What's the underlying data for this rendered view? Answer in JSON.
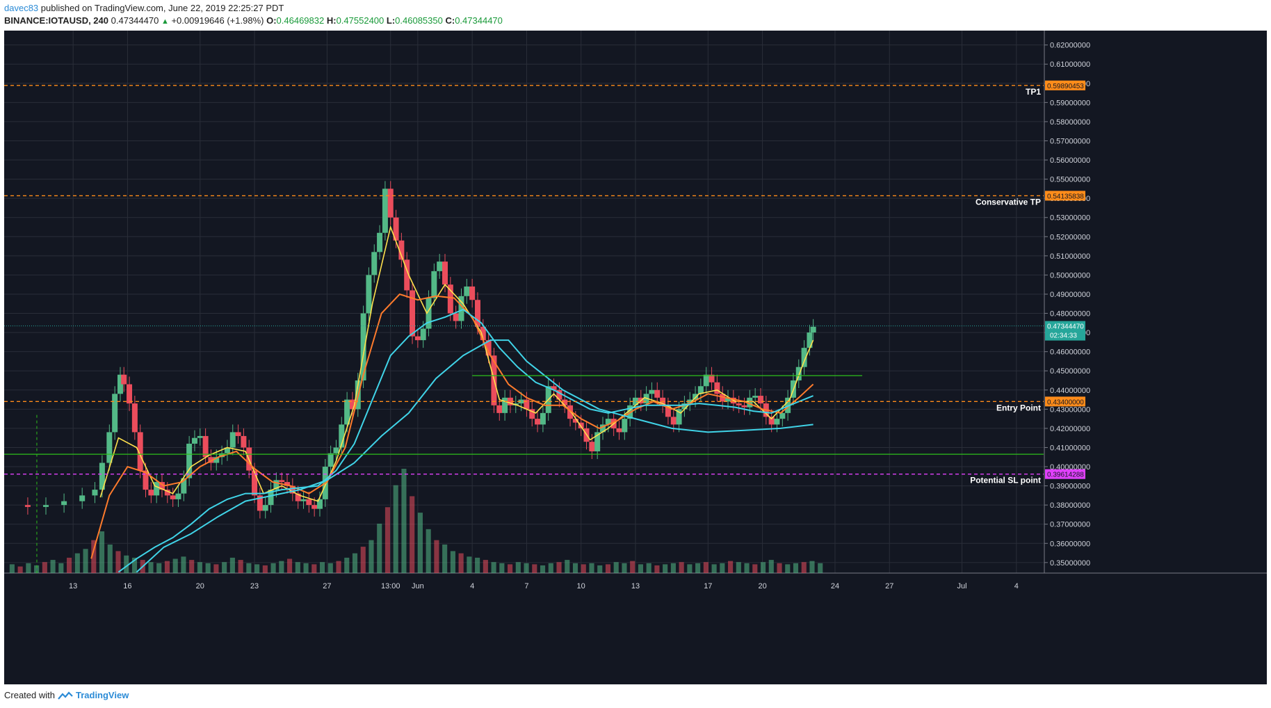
{
  "header": {
    "author": "davec83",
    "published_text": "published on TradingView.com, June 22, 2019 22:25:27 PDT",
    "symbol": "BINANCE:IOTAUSD, 240",
    "last_price": "0.47344470",
    "change": "+0.00919646 (+1.98%)",
    "o_label": "O:",
    "o_value": "0.46469832",
    "h_label": "H:",
    "h_value": "0.47552400",
    "l_label": "L:",
    "l_value": "0.46085350",
    "c_label": "C:",
    "c_value": "0.47344470"
  },
  "footer": {
    "created_with": "Created with",
    "brand": "TradingView"
  },
  "colors": {
    "background": "#131722",
    "grid": "#2a2e39",
    "up": "#53b987",
    "down": "#eb4d5c",
    "ma_fast": "#ffe14d",
    "ma_mid": "#ff7b2c",
    "ma_slow": "#40d4e8",
    "tp_line": "#ff8c1a",
    "sl_line": "#e040fb",
    "support": "#2ec01a"
  },
  "chart_data": {
    "type": "candlestick",
    "symbol": "BINANCE:IOTAUSD",
    "interval": "240",
    "y_ticks": [
      "0.35000000",
      "0.36000000",
      "0.37000000",
      "0.38000000",
      "0.39000000",
      "0.40000000",
      "0.41000000",
      "0.42000000",
      "0.43000000",
      "0.44000000",
      "0.45000000",
      "0.46000000",
      "0.47000000",
      "0.48000000",
      "0.49000000",
      "0.50000000",
      "0.51000000",
      "0.52000000",
      "0.53000000",
      "0.54000000",
      "0.55000000",
      "0.56000000",
      "0.57000000",
      "0.58000000",
      "0.59000000",
      "0.60000000",
      "0.61000000",
      "0.62000000"
    ],
    "ylim": [
      0.3445,
      0.6275
    ],
    "x_ticks": [
      "13",
      "16",
      "20",
      "23",
      "27",
      "13:00",
      "Jun",
      "4",
      "7",
      "10",
      "13",
      "17",
      "20",
      "24",
      "27",
      "Jul",
      "4"
    ],
    "x_tick_values": [
      13,
      16,
      20,
      23,
      27,
      30.5,
      32,
      35,
      38,
      41,
      44,
      48,
      51,
      55,
      58,
      62,
      65
    ],
    "x_range": [
      9.2,
      66.5
    ],
    "close_series": [
      [
        9.5,
        0.38
      ],
      [
        10.5,
        0.379
      ],
      [
        11.5,
        0.38
      ],
      [
        12.5,
        0.382
      ],
      [
        13.5,
        0.385
      ],
      [
        14.2,
        0.388
      ],
      [
        14.6,
        0.402
      ],
      [
        15.0,
        0.418
      ],
      [
        15.3,
        0.438
      ],
      [
        15.6,
        0.448
      ],
      [
        15.8,
        0.443
      ],
      [
        16.1,
        0.433
      ],
      [
        16.4,
        0.418
      ],
      [
        16.7,
        0.398
      ],
      [
        17.0,
        0.388
      ],
      [
        17.3,
        0.385
      ],
      [
        17.6,
        0.392
      ],
      [
        17.9,
        0.388
      ],
      [
        18.2,
        0.385
      ],
      [
        18.5,
        0.383
      ],
      [
        18.8,
        0.386
      ],
      [
        19.1,
        0.394
      ],
      [
        19.4,
        0.412
      ],
      [
        19.7,
        0.415
      ],
      [
        20.0,
        0.416
      ],
      [
        20.3,
        0.405
      ],
      [
        20.6,
        0.402
      ],
      [
        20.9,
        0.405
      ],
      [
        21.2,
        0.407
      ],
      [
        21.5,
        0.41
      ],
      [
        21.8,
        0.418
      ],
      [
        22.1,
        0.416
      ],
      [
        22.4,
        0.41
      ],
      [
        22.7,
        0.398
      ],
      [
        23.0,
        0.385
      ],
      [
        23.3,
        0.377
      ],
      [
        23.6,
        0.38
      ],
      [
        23.9,
        0.388
      ],
      [
        24.2,
        0.393
      ],
      [
        24.5,
        0.392
      ],
      [
        24.8,
        0.39
      ],
      [
        25.1,
        0.386
      ],
      [
        25.4,
        0.382
      ],
      [
        25.7,
        0.383
      ],
      [
        26.0,
        0.38
      ],
      [
        26.3,
        0.378
      ],
      [
        26.6,
        0.383
      ],
      [
        26.9,
        0.4
      ],
      [
        27.2,
        0.407
      ],
      [
        27.5,
        0.41
      ],
      [
        27.8,
        0.422
      ],
      [
        28.1,
        0.435
      ],
      [
        28.4,
        0.43
      ],
      [
        28.7,
        0.445
      ],
      [
        29.0,
        0.48
      ],
      [
        29.3,
        0.5
      ],
      [
        29.6,
        0.512
      ],
      [
        29.9,
        0.522
      ],
      [
        30.2,
        0.545
      ],
      [
        30.5,
        0.53
      ],
      [
        30.8,
        0.518
      ],
      [
        31.1,
        0.508
      ],
      [
        31.4,
        0.492
      ],
      [
        31.7,
        0.468
      ],
      [
        32.0,
        0.466
      ],
      [
        32.3,
        0.472
      ],
      [
        32.6,
        0.488
      ],
      [
        32.9,
        0.502
      ],
      [
        33.2,
        0.507
      ],
      [
        33.5,
        0.495
      ],
      [
        33.8,
        0.48
      ],
      [
        34.1,
        0.476
      ],
      [
        34.4,
        0.489
      ],
      [
        34.7,
        0.494
      ],
      [
        35.0,
        0.487
      ],
      [
        35.3,
        0.473
      ],
      [
        35.6,
        0.466
      ],
      [
        35.9,
        0.458
      ],
      [
        36.2,
        0.432
      ],
      [
        36.5,
        0.428
      ],
      [
        36.8,
        0.436
      ],
      [
        37.1,
        0.432
      ],
      [
        37.4,
        0.433
      ],
      [
        37.7,
        0.435
      ],
      [
        38.0,
        0.43
      ],
      [
        38.3,
        0.425
      ],
      [
        38.6,
        0.422
      ],
      [
        38.9,
        0.428
      ],
      [
        39.2,
        0.442
      ],
      [
        39.5,
        0.44
      ],
      [
        39.8,
        0.435
      ],
      [
        40.1,
        0.432
      ],
      [
        40.4,
        0.425
      ],
      [
        40.7,
        0.423
      ],
      [
        41.0,
        0.42
      ],
      [
        41.3,
        0.413
      ],
      [
        41.6,
        0.408
      ],
      [
        41.9,
        0.418
      ],
      [
        42.2,
        0.422
      ],
      [
        42.5,
        0.425
      ],
      [
        42.8,
        0.42
      ],
      [
        43.1,
        0.418
      ],
      [
        43.4,
        0.425
      ],
      [
        43.7,
        0.432
      ],
      [
        44.0,
        0.436
      ],
      [
        44.3,
        0.433
      ],
      [
        44.6,
        0.438
      ],
      [
        44.9,
        0.44
      ],
      [
        45.2,
        0.436
      ],
      [
        45.5,
        0.432
      ],
      [
        45.8,
        0.426
      ],
      [
        46.1,
        0.422
      ],
      [
        46.4,
        0.43
      ],
      [
        46.7,
        0.433
      ],
      [
        47.0,
        0.435
      ],
      [
        47.3,
        0.438
      ],
      [
        47.6,
        0.442
      ],
      [
        47.9,
        0.448
      ],
      [
        48.2,
        0.444
      ],
      [
        48.5,
        0.438
      ],
      [
        48.8,
        0.434
      ],
      [
        49.1,
        0.436
      ],
      [
        49.4,
        0.433
      ],
      [
        49.7,
        0.432
      ],
      [
        50.0,
        0.431
      ],
      [
        50.3,
        0.436
      ],
      [
        50.6,
        0.437
      ],
      [
        50.9,
        0.433
      ],
      [
        51.2,
        0.426
      ],
      [
        51.5,
        0.422
      ],
      [
        51.8,
        0.425
      ],
      [
        52.1,
        0.428
      ],
      [
        52.4,
        0.436
      ],
      [
        52.7,
        0.445
      ],
      [
        53.0,
        0.452
      ],
      [
        53.3,
        0.462
      ],
      [
        53.6,
        0.47
      ],
      [
        53.8,
        0.473
      ]
    ],
    "moving_averages": [
      {
        "name": "fast",
        "points": [
          [
            14.5,
            0.384
          ],
          [
            15.5,
            0.415
          ],
          [
            16.5,
            0.41
          ],
          [
            17.5,
            0.39
          ],
          [
            18.5,
            0.386
          ],
          [
            19.5,
            0.4
          ],
          [
            20.5,
            0.406
          ],
          [
            21.5,
            0.41
          ],
          [
            22.5,
            0.408
          ],
          [
            23.5,
            0.386
          ],
          [
            24.5,
            0.39
          ],
          [
            25.5,
            0.385
          ],
          [
            26.5,
            0.382
          ],
          [
            27.5,
            0.403
          ],
          [
            28.5,
            0.432
          ],
          [
            29.5,
            0.485
          ],
          [
            30.5,
            0.525
          ],
          [
            31.5,
            0.5
          ],
          [
            32.5,
            0.48
          ],
          [
            33.5,
            0.495
          ],
          [
            34.5,
            0.485
          ],
          [
            35.5,
            0.47
          ],
          [
            36.5,
            0.435
          ],
          [
            37.5,
            0.432
          ],
          [
            38.5,
            0.428
          ],
          [
            39.5,
            0.438
          ],
          [
            40.5,
            0.428
          ],
          [
            41.5,
            0.414
          ],
          [
            42.5,
            0.42
          ],
          [
            43.5,
            0.428
          ],
          [
            44.5,
            0.436
          ],
          [
            45.5,
            0.433
          ],
          [
            46.5,
            0.428
          ],
          [
            47.5,
            0.438
          ],
          [
            48.5,
            0.44
          ],
          [
            49.5,
            0.434
          ],
          [
            50.5,
            0.434
          ],
          [
            51.5,
            0.425
          ],
          [
            52.5,
            0.435
          ],
          [
            53.3,
            0.455
          ],
          [
            53.8,
            0.466
          ]
        ]
      },
      {
        "name": "mid",
        "points": [
          [
            14.0,
            0.352
          ],
          [
            15.0,
            0.385
          ],
          [
            16.0,
            0.4
          ],
          [
            17.0,
            0.397
          ],
          [
            18.0,
            0.39
          ],
          [
            19.0,
            0.392
          ],
          [
            20.0,
            0.4
          ],
          [
            21.0,
            0.405
          ],
          [
            22.0,
            0.408
          ],
          [
            23.0,
            0.399
          ],
          [
            24.0,
            0.392
          ],
          [
            25.0,
            0.39
          ],
          [
            26.0,
            0.386
          ],
          [
            27.0,
            0.392
          ],
          [
            28.0,
            0.41
          ],
          [
            29.0,
            0.448
          ],
          [
            30.0,
            0.48
          ],
          [
            31.0,
            0.49
          ],
          [
            32.0,
            0.487
          ],
          [
            33.0,
            0.489
          ],
          [
            34.0,
            0.488
          ],
          [
            35.0,
            0.478
          ],
          [
            36.0,
            0.458
          ],
          [
            37.0,
            0.443
          ],
          [
            38.0,
            0.436
          ],
          [
            39.0,
            0.432
          ],
          [
            40.0,
            0.432
          ],
          [
            41.0,
            0.425
          ],
          [
            42.0,
            0.42
          ],
          [
            43.0,
            0.424
          ],
          [
            44.0,
            0.43
          ],
          [
            45.0,
            0.434
          ],
          [
            46.0,
            0.43
          ],
          [
            47.0,
            0.433
          ],
          [
            48.0,
            0.438
          ],
          [
            49.0,
            0.436
          ],
          [
            50.0,
            0.434
          ],
          [
            51.0,
            0.43
          ],
          [
            52.0,
            0.428
          ],
          [
            53.0,
            0.436
          ],
          [
            53.8,
            0.443
          ]
        ]
      },
      {
        "name": "slow",
        "points": [
          [
            15.5,
            0.345
          ],
          [
            16.5,
            0.352
          ],
          [
            17.5,
            0.358
          ],
          [
            18.5,
            0.363
          ],
          [
            19.5,
            0.37
          ],
          [
            20.5,
            0.378
          ],
          [
            21.5,
            0.383
          ],
          [
            22.5,
            0.386
          ],
          [
            23.5,
            0.386
          ],
          [
            24.5,
            0.388
          ],
          [
            25.5,
            0.389
          ],
          [
            26.5,
            0.39
          ],
          [
            27.5,
            0.398
          ],
          [
            28.5,
            0.412
          ],
          [
            29.5,
            0.435
          ],
          [
            30.5,
            0.458
          ],
          [
            31.5,
            0.468
          ],
          [
            32.5,
            0.475
          ],
          [
            33.5,
            0.478
          ],
          [
            34.5,
            0.482
          ],
          [
            35.5,
            0.475
          ],
          [
            36.5,
            0.462
          ],
          [
            37.5,
            0.452
          ],
          [
            38.5,
            0.444
          ],
          [
            39.5,
            0.44
          ],
          [
            40.5,
            0.435
          ],
          [
            41.5,
            0.43
          ],
          [
            42.5,
            0.428
          ],
          [
            43.5,
            0.43
          ],
          [
            44.5,
            0.432
          ],
          [
            45.5,
            0.432
          ],
          [
            46.5,
            0.432
          ],
          [
            47.5,
            0.433
          ],
          [
            48.5,
            0.432
          ],
          [
            49.5,
            0.431
          ],
          [
            50.5,
            0.429
          ],
          [
            51.5,
            0.428
          ],
          [
            52.5,
            0.432
          ],
          [
            53.8,
            0.437
          ]
        ]
      },
      {
        "name": "long",
        "points": [
          [
            16.5,
            0.345
          ],
          [
            18.0,
            0.358
          ],
          [
            19.5,
            0.365
          ],
          [
            21.0,
            0.374
          ],
          [
            22.5,
            0.382
          ],
          [
            24.0,
            0.385
          ],
          [
            25.5,
            0.388
          ],
          [
            27.0,
            0.393
          ],
          [
            28.5,
            0.402
          ],
          [
            30.0,
            0.416
          ],
          [
            31.5,
            0.428
          ],
          [
            33.0,
            0.446
          ],
          [
            34.5,
            0.458
          ],
          [
            36.0,
            0.466
          ],
          [
            37.0,
            0.466
          ],
          [
            38.0,
            0.455
          ],
          [
            40.0,
            0.44
          ],
          [
            42.0,
            0.43
          ],
          [
            44.0,
            0.425
          ],
          [
            46.0,
            0.42
          ],
          [
            48.0,
            0.418
          ],
          [
            50.0,
            0.419
          ],
          [
            52.0,
            0.42
          ],
          [
            53.8,
            0.422
          ]
        ]
      }
    ],
    "volume": [
      8,
      6,
      9,
      7,
      10,
      12,
      9,
      14,
      18,
      22,
      30,
      38,
      26,
      20,
      16,
      14,
      12,
      10,
      9,
      11,
      13,
      15,
      12,
      10,
      9,
      8,
      10,
      14,
      12,
      9,
      8,
      7,
      9,
      11,
      13,
      10,
      9,
      8,
      10,
      9,
      11,
      14,
      18,
      24,
      30,
      45,
      60,
      80,
      95,
      70,
      55,
      40,
      30,
      26,
      20,
      18,
      15,
      14,
      12,
      10,
      9,
      8,
      10,
      9,
      8,
      7,
      9,
      10,
      12,
      9,
      8,
      9,
      7,
      8,
      10,
      9,
      11,
      8,
      9,
      7,
      8,
      9,
      10,
      8,
      9,
      10,
      8,
      9,
      11,
      10,
      9,
      8,
      10,
      12,
      9,
      8,
      9,
      10,
      11,
      9
    ],
    "horizontal_levels": [
      {
        "label": "TP1",
        "value": 0.59890453,
        "price_text": "0.59890453",
        "style": "dashed",
        "color_key": "tp_line"
      },
      {
        "label": "Conservative TP",
        "value": 0.54135838,
        "price_text": "0.54135838",
        "style": "dashed",
        "color_key": "tp_line"
      },
      {
        "label": "Entry Point",
        "value": 0.434,
        "price_text": "0.43400000",
        "style": "dashed",
        "color_key": "tp_line"
      },
      {
        "label": "Potential SL point",
        "value": 0.39614288,
        "price_text": "0.39614288",
        "style": "dashed",
        "color_key": "sl_line"
      },
      {
        "label": "",
        "value": 0.4065,
        "price_text": "",
        "style": "solid",
        "color_key": "support",
        "x_from": 9.2
      },
      {
        "label": "",
        "value": 0.4475,
        "price_text": "",
        "style": "solid",
        "color_key": "support",
        "x_from": 35.0,
        "x_to": 56.5
      }
    ],
    "current_price": {
      "value": 0.4734447,
      "price_text": "0.47344470",
      "countdown": "02:34:33"
    },
    "grid": true,
    "legend": "none"
  }
}
